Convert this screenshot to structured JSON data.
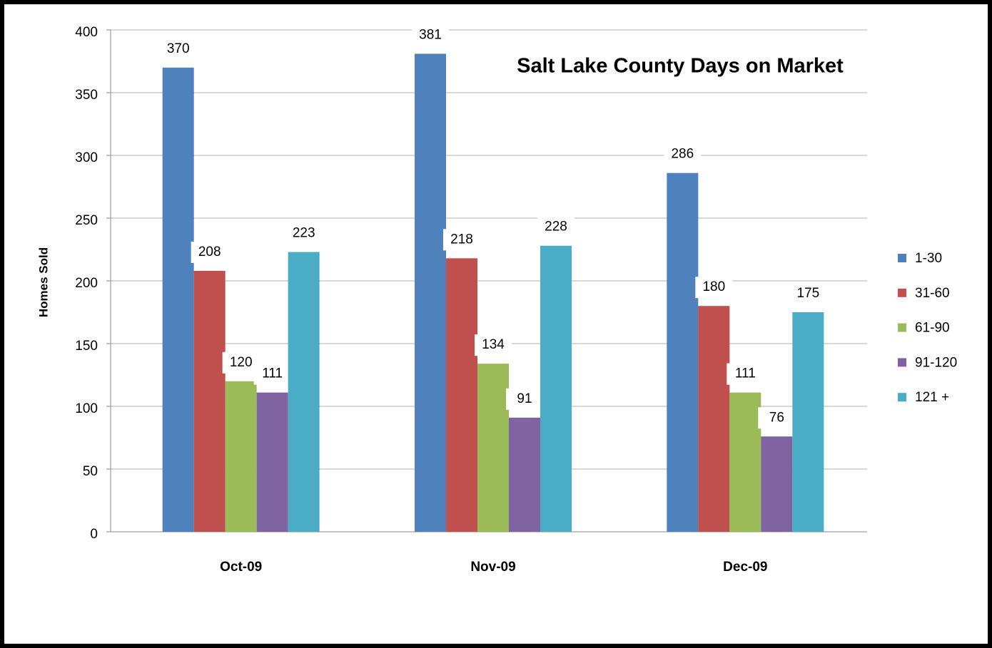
{
  "chart_data": {
    "type": "bar",
    "title": "Salt Lake County Days on Market",
    "y_label": "Homes Sold",
    "categories": [
      "Oct-09",
      "Nov-09",
      "Dec-09"
    ],
    "series": [
      {
        "name": "1-30",
        "color": "#4f81bd",
        "values": [
          370,
          381,
          286
        ]
      },
      {
        "name": "31-60",
        "color": "#c0504d",
        "values": [
          208,
          218,
          180
        ]
      },
      {
        "name": "61-90",
        "color": "#9bbb59",
        "values": [
          120,
          134,
          111
        ]
      },
      {
        "name": "91-120",
        "color": "#8064a2",
        "values": [
          111,
          91,
          76
        ]
      },
      {
        "name": "121 +",
        "color": "#4bacc6",
        "values": [
          223,
          228,
          175
        ]
      }
    ],
    "ylim": [
      0,
      400
    ],
    "yticks": [
      0,
      50,
      100,
      150,
      200,
      250,
      300,
      350,
      400
    ],
    "grid": true,
    "legend": "right"
  }
}
